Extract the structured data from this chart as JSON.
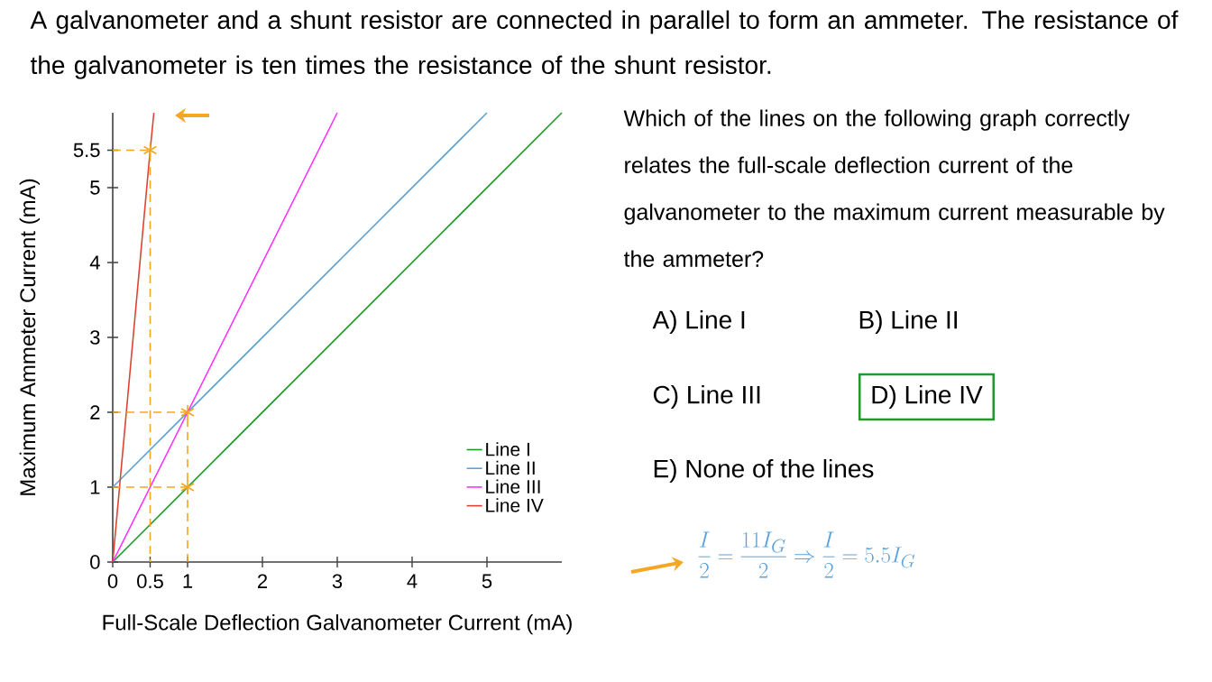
{
  "chart_data": {
    "type": "line",
    "title": "A galvanometer and a shunt resistor are connected in parallel to form an ammeter. The resistance of the galvanometer is ten times the resistance of the shunt resistor.",
    "xlabel": "Full-Scale Deflection Galvanometer Current (mA)",
    "ylabel": "Maximum Ammeter Current (mA)",
    "xlim": [
      0,
      6
    ],
    "ylim": [
      0,
      6
    ],
    "xticks": [
      0,
      0.5,
      1,
      2,
      3,
      4,
      5
    ],
    "yticks": [
      0,
      1,
      2,
      3,
      4,
      5,
      5.5
    ],
    "legend": "bottom right",
    "series": [
      {
        "name": "Line I",
        "color": "#1e9a2a",
        "x": [
          0,
          6
        ],
        "values": [
          0,
          6
        ]
      },
      {
        "name": "Line II",
        "color": "#5aa2dc",
        "x": [
          0,
          5
        ],
        "values": [
          1,
          6
        ]
      },
      {
        "name": "Line III",
        "color": "#ff33ff",
        "x": [
          0,
          3
        ],
        "values": [
          0,
          6
        ]
      },
      {
        "name": "Line IV",
        "color": "#dd4433",
        "x": [
          0,
          0.5,
          0.55
        ],
        "values": [
          0,
          5.5,
          6
        ]
      },
      {
        "type": "line",
        "line_style": "dashed",
        "color": "#f5a623",
        "x": [
          0,
          0.5,
          0.5
        ],
        "values": [
          5.5,
          5.5,
          0
        ]
      },
      {
        "type": "line",
        "line_style": "dashed",
        "color": "#f5a623",
        "x": [
          0,
          1,
          1
        ],
        "values": [
          2,
          2,
          0
        ]
      },
      {
        "type": "line",
        "line_style": "dashed",
        "color": "#f5a623",
        "x": [
          0,
          1
        ],
        "values": [
          1,
          1
        ]
      },
      {
        "type": "scatter",
        "marker": "cross",
        "color": "#f5a623",
        "x": [
          0.5,
          1,
          1
        ],
        "values": [
          5.5,
          2,
          1
        ]
      }
    ],
    "annotations": [
      "Which of the lines on the following graph correctly relates the full-scale deflection current of the galvanometer to the maximum current measurable by the ammeter?",
      "A) Line I",
      "B) Line II",
      "C) Line III",
      "D) Line IV",
      "E) None of the lines",
      "\\frac{I}{2} = \\frac{11 I_G}{2} \\Rightarrow \\frac{I}{2} = 5.5 I_G"
    ]
  }
}
